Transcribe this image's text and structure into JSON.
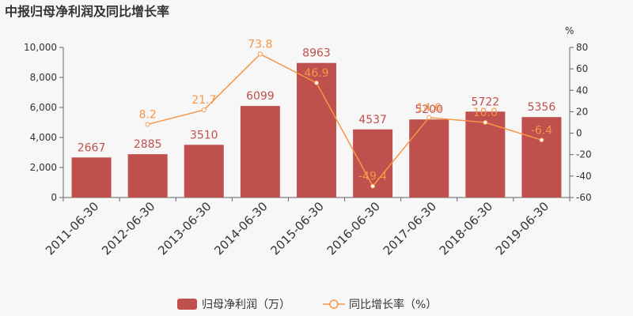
{
  "chart_data": {
    "type": "bar",
    "title": "中报归母净利润及同比增长率",
    "categories": [
      "2011-06-30",
      "2012-06-30",
      "2013-06-30",
      "2014-06-30",
      "2015-06-30",
      "2016-06-30",
      "2017-06-30",
      "2018-06-30",
      "2019-06-30"
    ],
    "series": [
      {
        "name": "归母净利润（万）",
        "type": "bar",
        "axis": "left",
        "values": [
          2667,
          2885,
          3510,
          6099,
          8963,
          4537,
          5200,
          5722,
          5356
        ],
        "labels": [
          "2667",
          "2885",
          "3510",
          "6099",
          "8963",
          "4537",
          "5200",
          "5722",
          "5356"
        ],
        "color": "#c0504d"
      },
      {
        "name": "同比增长率（%）",
        "type": "line",
        "axis": "right",
        "values": [
          null,
          8.2,
          21.7,
          73.8,
          46.9,
          -49.4,
          14.6,
          10.0,
          -6.4
        ],
        "labels": [
          "",
          "8.2",
          "21.7",
          "73.8",
          "46.9",
          "-49.4",
          "14.6",
          "10.0",
          "-6.4"
        ],
        "color": "#f79646"
      }
    ],
    "y_left": {
      "min": 0,
      "max": 10000,
      "ticks": [
        "0",
        "2,000",
        "4,000",
        "6,000",
        "8,000",
        "10,000"
      ],
      "tick_values": [
        0,
        2000,
        4000,
        6000,
        8000,
        10000
      ]
    },
    "y_right": {
      "min": -60,
      "max": 80,
      "unit": "%",
      "ticks": [
        "-60",
        "-40",
        "-20",
        "0",
        "20",
        "40",
        "60",
        "80"
      ],
      "tick_values": [
        -60,
        -40,
        -20,
        0,
        20,
        40,
        60,
        80
      ]
    },
    "grid": false,
    "legend": "bottom-center"
  }
}
